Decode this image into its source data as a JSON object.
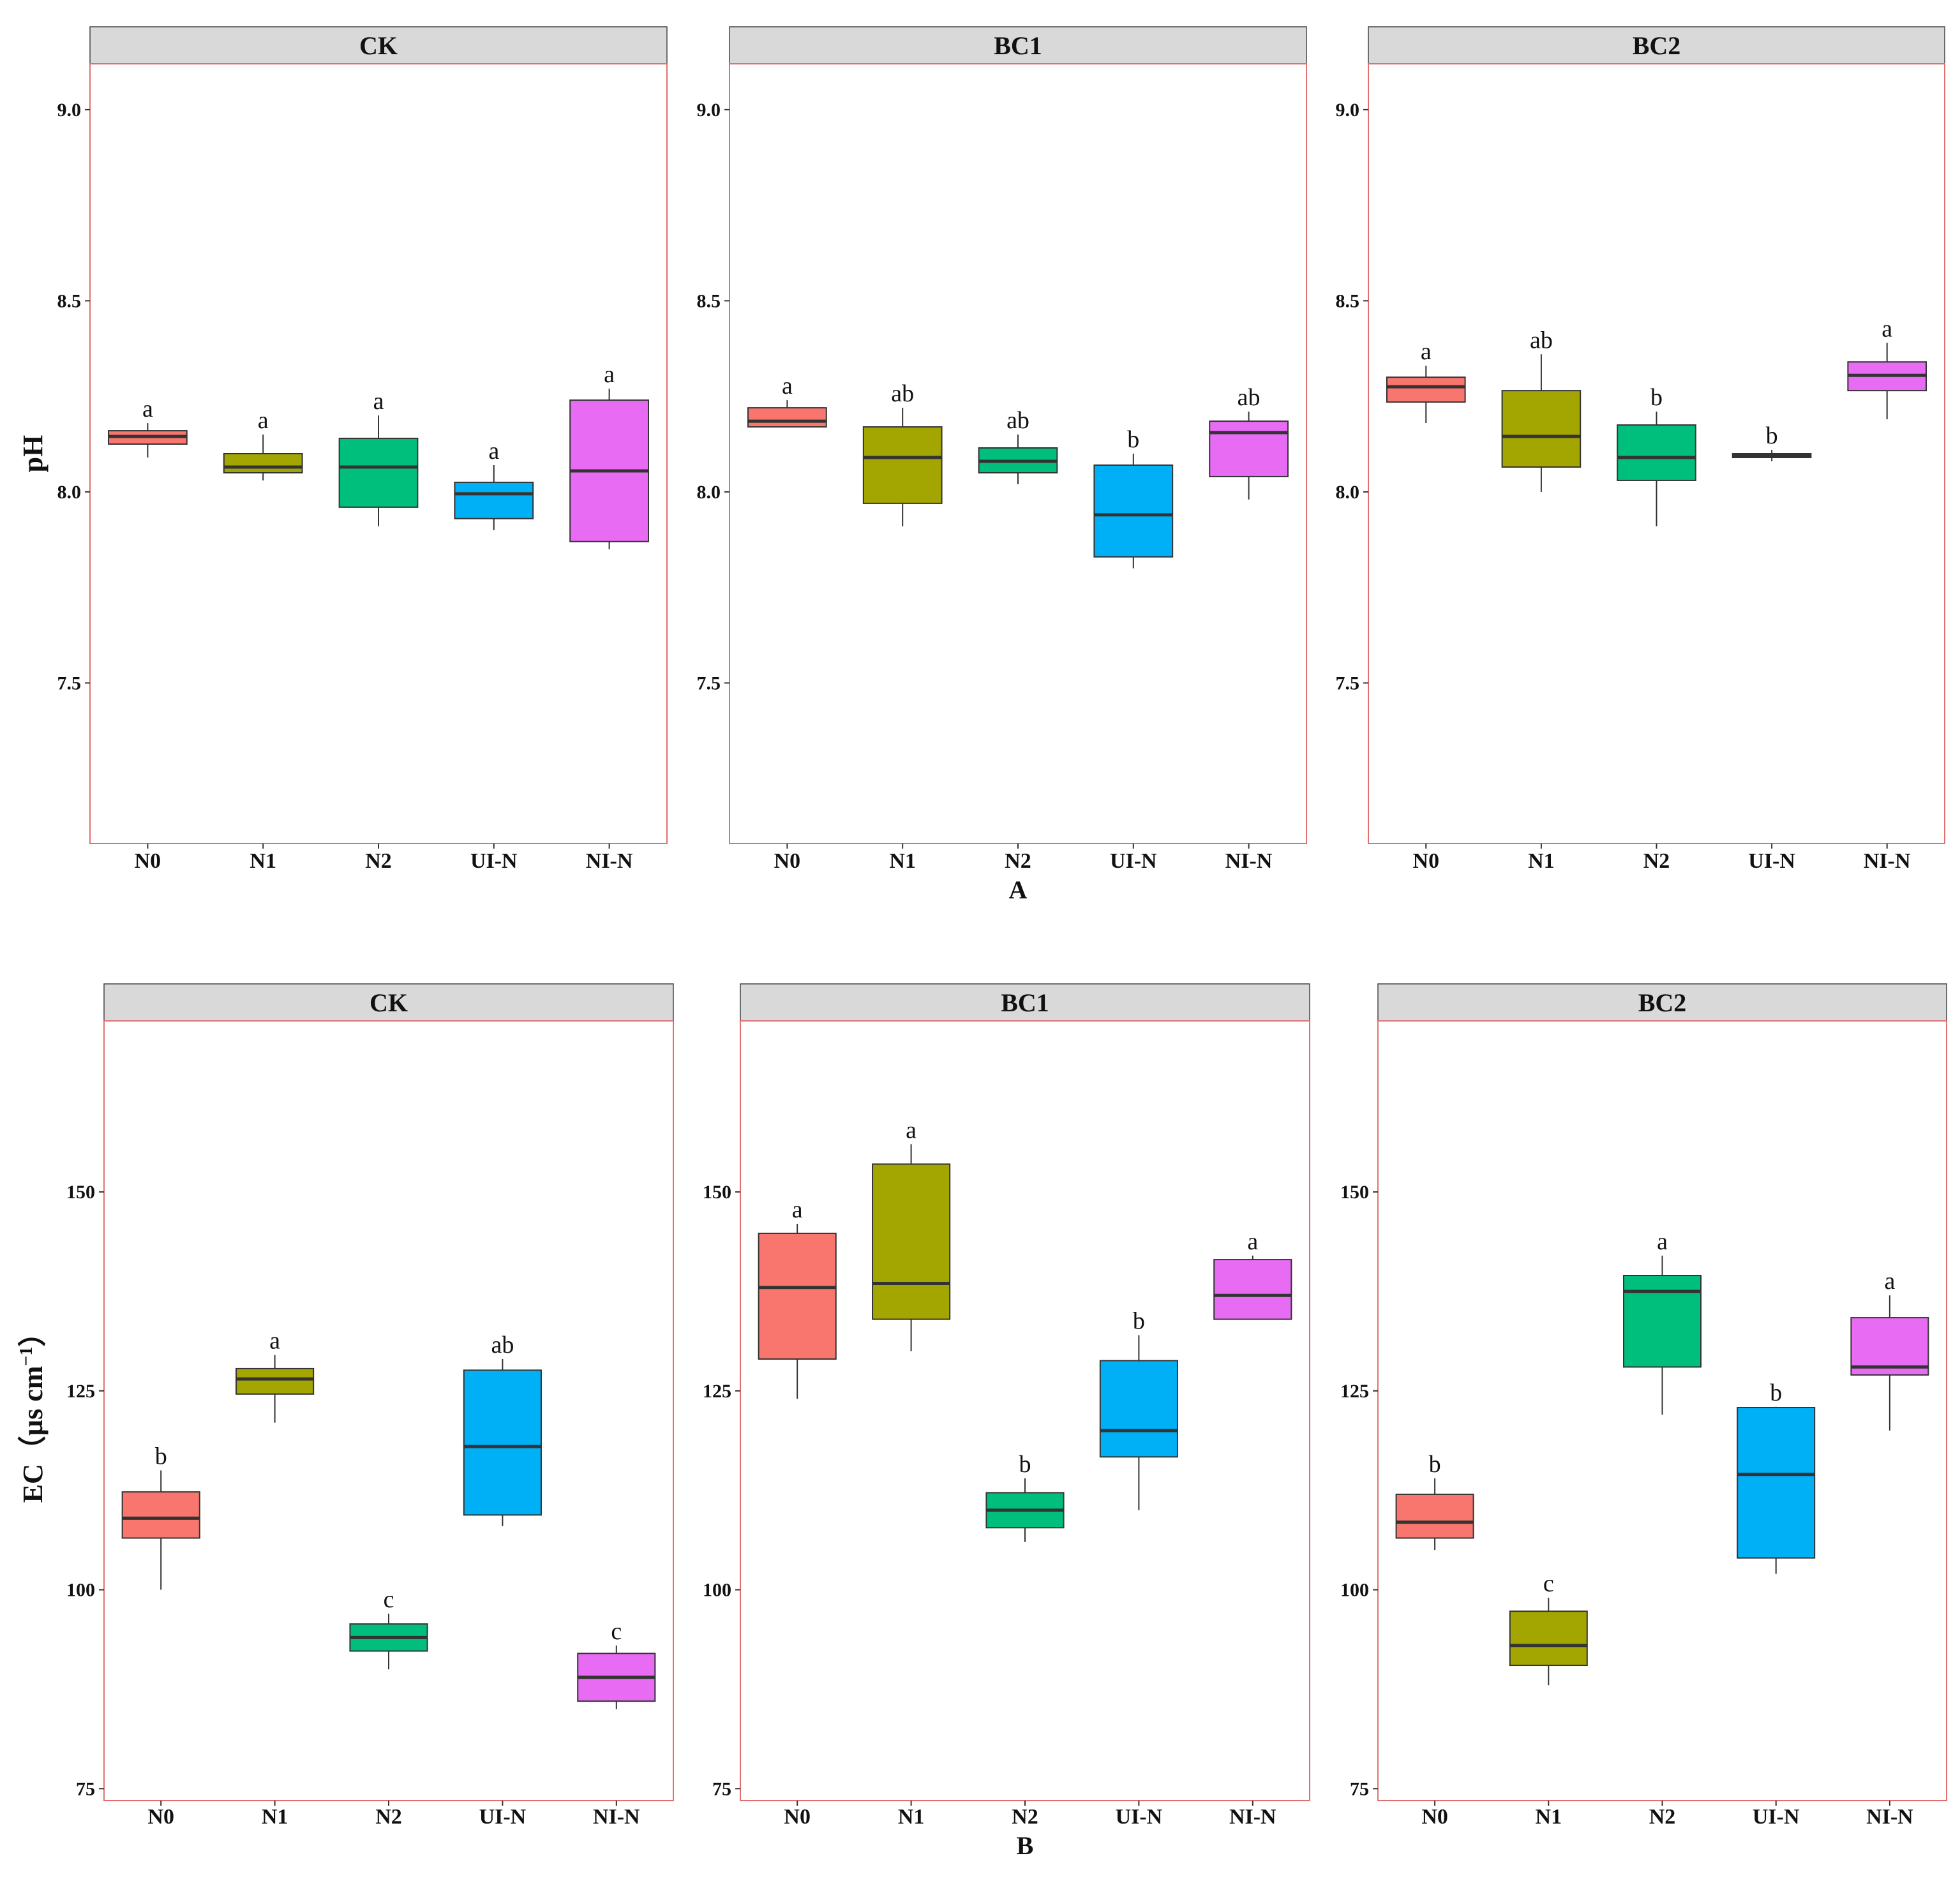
{
  "colors": {
    "N0": "#F8766D",
    "N1": "#A3A500",
    "N2": "#00BF7D",
    "UI-N": "#00B0F6",
    "NI-N": "#E76BF3",
    "strip_fill": "#D9D9D9",
    "panel_border": "#E07070"
  },
  "chart_data": [
    {
      "type": "box",
      "figure_label": "A",
      "ylabel": "pH",
      "ylim": [
        7.08,
        9.12
      ],
      "yticks": [
        7.5,
        8.0,
        8.5,
        9.0
      ],
      "ytick_labels": [
        "7.5",
        "8.0",
        "8.5",
        "9.0"
      ],
      "categories": [
        "N0",
        "N1",
        "N2",
        "UI-N",
        "NI-N"
      ],
      "panels": [
        {
          "title": "CK",
          "boxes": [
            {
              "q1": 8.125,
              "median": 8.145,
              "q3": 8.16,
              "lower": 8.09,
              "upper": 8.18,
              "letter": "a"
            },
            {
              "q1": 8.05,
              "median": 8.065,
              "q3": 8.1,
              "lower": 8.03,
              "upper": 8.15,
              "letter": "a"
            },
            {
              "q1": 7.96,
              "median": 8.065,
              "q3": 8.14,
              "lower": 7.91,
              "upper": 8.2,
              "letter": "a"
            },
            {
              "q1": 7.93,
              "median": 7.995,
              "q3": 8.025,
              "lower": 7.9,
              "upper": 8.07,
              "letter": "a"
            },
            {
              "q1": 7.87,
              "median": 8.055,
              "q3": 8.24,
              "lower": 7.85,
              "upper": 8.27,
              "letter": "a"
            }
          ]
        },
        {
          "title": "BC1",
          "boxes": [
            {
              "q1": 8.17,
              "median": 8.185,
              "q3": 8.22,
              "lower": 8.17,
              "upper": 8.24,
              "letter": "a"
            },
            {
              "q1": 7.97,
              "median": 8.09,
              "q3": 8.17,
              "lower": 7.91,
              "upper": 8.22,
              "letter": "ab"
            },
            {
              "q1": 8.05,
              "median": 8.08,
              "q3": 8.115,
              "lower": 8.02,
              "upper": 8.15,
              "letter": "ab"
            },
            {
              "q1": 7.83,
              "median": 7.94,
              "q3": 8.07,
              "lower": 7.8,
              "upper": 8.1,
              "letter": "b"
            },
            {
              "q1": 8.04,
              "median": 8.155,
              "q3": 8.185,
              "lower": 7.98,
              "upper": 8.21,
              "letter": "ab"
            }
          ]
        },
        {
          "title": "BC2",
          "boxes": [
            {
              "q1": 8.235,
              "median": 8.275,
              "q3": 8.3,
              "lower": 8.18,
              "upper": 8.33,
              "letter": "a"
            },
            {
              "q1": 8.065,
              "median": 8.145,
              "q3": 8.265,
              "lower": 8.0,
              "upper": 8.36,
              "letter": "ab"
            },
            {
              "q1": 8.03,
              "median": 8.09,
              "q3": 8.175,
              "lower": 7.91,
              "upper": 8.21,
              "letter": "b"
            },
            {
              "q1": 8.09,
              "median": 8.095,
              "q3": 8.1,
              "lower": 8.08,
              "upper": 8.11,
              "letter": "b"
            },
            {
              "q1": 8.265,
              "median": 8.305,
              "q3": 8.34,
              "lower": 8.19,
              "upper": 8.39,
              "letter": "a"
            }
          ]
        }
      ]
    },
    {
      "type": "box",
      "figure_label": "B",
      "ylabel": "EC（µs cm",
      "ylabel_sup": "−1",
      "ylabel_close": "）",
      "ylim": [
        73.5,
        171.5
      ],
      "yticks": [
        75,
        100,
        125,
        150
      ],
      "ytick_labels": [
        "75",
        "100",
        "125",
        "150"
      ],
      "categories": [
        "N0",
        "N1",
        "N2",
        "UI-N",
        "NI-N"
      ],
      "panels": [
        {
          "title": "CK",
          "boxes": [
            {
              "q1": 106.5,
              "median": 109,
              "q3": 112.3,
              "lower": 100,
              "upper": 115,
              "letter": "b"
            },
            {
              "q1": 124.6,
              "median": 126.5,
              "q3": 127.8,
              "lower": 121,
              "upper": 129.5,
              "letter": "a"
            },
            {
              "q1": 92.3,
              "median": 94,
              "q3": 95.7,
              "lower": 90,
              "upper": 97,
              "letter": "c"
            },
            {
              "q1": 109.4,
              "median": 118,
              "q3": 127.6,
              "lower": 108,
              "upper": 129,
              "letter": "ab"
            },
            {
              "q1": 86,
              "median": 89,
              "q3": 92,
              "lower": 85,
              "upper": 93,
              "letter": "c"
            }
          ]
        },
        {
          "title": "BC1",
          "boxes": [
            {
              "q1": 129,
              "median": 138,
              "q3": 144.8,
              "lower": 124,
              "upper": 146,
              "letter": "a"
            },
            {
              "q1": 134,
              "median": 138.5,
              "q3": 153.5,
              "lower": 130,
              "upper": 156,
              "letter": "a"
            },
            {
              "q1": 107.8,
              "median": 110,
              "q3": 112.2,
              "lower": 106,
              "upper": 114,
              "letter": "b"
            },
            {
              "q1": 116.7,
              "median": 120,
              "q3": 128.8,
              "lower": 110,
              "upper": 132,
              "letter": "b"
            },
            {
              "q1": 134,
              "median": 137,
              "q3": 141.5,
              "lower": 134,
              "upper": 142,
              "letter": "a"
            }
          ]
        },
        {
          "title": "BC2",
          "boxes": [
            {
              "q1": 106.5,
              "median": 108.5,
              "q3": 112,
              "lower": 105,
              "upper": 114,
              "letter": "b"
            },
            {
              "q1": 90.5,
              "median": 93,
              "q3": 97.3,
              "lower": 88,
              "upper": 99,
              "letter": "c"
            },
            {
              "q1": 128,
              "median": 137.5,
              "q3": 139.5,
              "lower": 122,
              "upper": 142,
              "letter": "a"
            },
            {
              "q1": 104,
              "median": 114.5,
              "q3": 122.9,
              "lower": 102,
              "upper": 123,
              "letter": "b"
            },
            {
              "q1": 127,
              "median": 128,
              "q3": 134.2,
              "lower": 120,
              "upper": 137,
              "letter": "a"
            }
          ]
        }
      ]
    }
  ]
}
